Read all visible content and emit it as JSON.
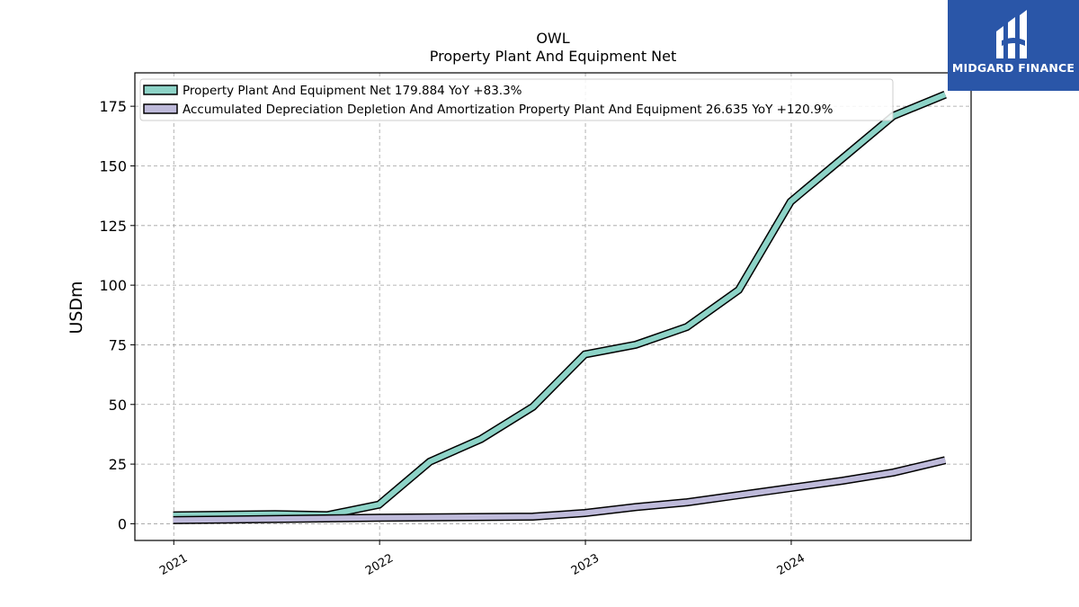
{
  "chart_data": {
    "type": "line",
    "title": "OWL",
    "subtitle": "Property Plant And Equipment Net",
    "ylabel": "USDm",
    "xlabel": "",
    "ylim": [
      -7,
      189
    ],
    "xlim": [
      "2020-10-24",
      "2024-11-15"
    ],
    "yticks": [
      0,
      25,
      50,
      75,
      100,
      125,
      150,
      175
    ],
    "xticks": [
      "2021",
      "2022",
      "2023",
      "2024"
    ],
    "grid": true,
    "legend_position": "top-left",
    "series": [
      {
        "name": "Property Plant And Equipment Net",
        "legend_label": "Property Plant And Equipment Net  179.884 YoY +83.3%",
        "color": "#8dd3c7",
        "points": [
          [
            "2020-12-31",
            3.5
          ],
          [
            "2021-06-30",
            4.0
          ],
          [
            "2021-09-30",
            3.6
          ],
          [
            "2021-12-31",
            8.0
          ],
          [
            "2022-03-31",
            26.0
          ],
          [
            "2022-06-30",
            35.5
          ],
          [
            "2022-09-30",
            49.0
          ],
          [
            "2022-12-31",
            71.0
          ],
          [
            "2023-03-31",
            75.0
          ],
          [
            "2023-06-30",
            82.5
          ],
          [
            "2023-09-30",
            98.0
          ],
          [
            "2023-12-31",
            135.0
          ],
          [
            "2024-03-31",
            153.0
          ],
          [
            "2024-06-30",
            171.0
          ],
          [
            "2024-09-30",
            179.884
          ]
        ]
      },
      {
        "name": "Accumulated Depreciation Depletion And Amortization Property Plant And Equipment",
        "legend_label": "Accumulated Depreciation Depletion And Amortization Property Plant And Equipment  26.635 YoY +120.9%",
        "color": "#bebada",
        "points": [
          [
            "2020-12-31",
            1.5
          ],
          [
            "2021-12-31",
            2.5
          ],
          [
            "2022-09-30",
            3.0
          ],
          [
            "2022-12-31",
            4.5
          ],
          [
            "2023-03-31",
            7.0
          ],
          [
            "2023-06-30",
            9.0
          ],
          [
            "2023-09-30",
            12.0
          ],
          [
            "2023-12-31",
            15.0
          ],
          [
            "2024-03-31",
            18.0
          ],
          [
            "2024-06-30",
            21.5
          ],
          [
            "2024-09-30",
            26.635
          ]
        ]
      }
    ]
  },
  "brand": {
    "name": "MIDGARD FINANCE",
    "background_color": "#2a56a8"
  }
}
